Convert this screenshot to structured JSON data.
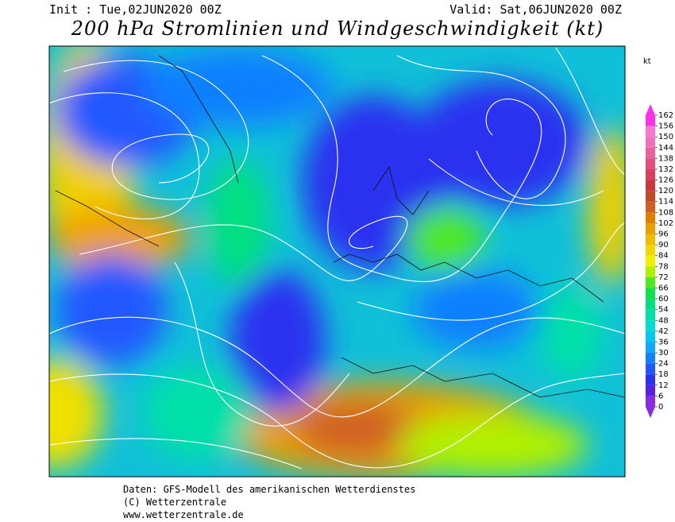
{
  "header": {
    "init": "Init : Tue,02JUN2020 00Z",
    "valid": "Valid: Sat,06JUN2020 00Z",
    "title": "200 hPa Stromlinien und Windgeschwindigkeit (kt)"
  },
  "colorbar": {
    "unit": "kt",
    "ticks": [
      0,
      6,
      12,
      18,
      24,
      30,
      36,
      42,
      48,
      54,
      60,
      66,
      72,
      78,
      84,
      90,
      96,
      102,
      108,
      114,
      120,
      126,
      132,
      138,
      144,
      150,
      156,
      162
    ],
    "colors": [
      "#8a2be2",
      "#5a20e0",
      "#2a30f0",
      "#2058ff",
      "#1080ff",
      "#10a8ff",
      "#00c8f0",
      "#00dcd0",
      "#00e0a8",
      "#00e080",
      "#10e050",
      "#50e820",
      "#b0f000",
      "#f0f000",
      "#f0d800",
      "#f0bc00",
      "#e8a000",
      "#e08000",
      "#d06020",
      "#c04828",
      "#c83840",
      "#d84060",
      "#e05080",
      "#e860a0",
      "#f070b8",
      "#f878d0",
      "#ff30e8"
    ]
  },
  "footer": {
    "lines": [
      "Daten: GFS-Modell des amerikanischen Wetterdienstes",
      "(C) Wetterzentrale",
      "www.wetterzentrale.de"
    ]
  }
}
